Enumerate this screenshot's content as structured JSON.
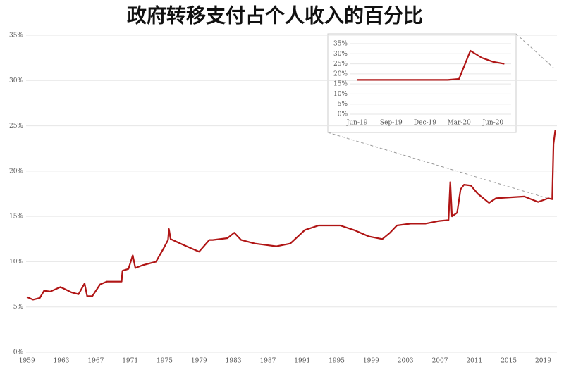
{
  "chart_data": [
    {
      "type": "line",
      "title": "政府转移支付占个人收入的百分比",
      "x": [
        1959,
        1959.7,
        1960.5,
        1961,
        1961.7,
        1962.9,
        1964.2,
        1965,
        1965.7,
        1966,
        1966.6,
        1967.5,
        1968.3,
        1970,
        1970.1,
        1970.8,
        1971.3,
        1971.6,
        1972.4,
        1974,
        1974.9,
        1975.4,
        1975.5,
        1975.7,
        1977.3,
        1979,
        1980.2,
        1980.6,
        1982.3,
        1983.1,
        1983.9,
        1985.5,
        1988,
        1989.6,
        1991.3,
        1992.9,
        1995.4,
        1997,
        1998.7,
        2000.3,
        2001.2,
        2002,
        2003.6,
        2005.3,
        2006.9,
        2008,
        2008.2,
        2008.4,
        2009,
        2009.4,
        2009.8,
        2010.6,
        2011.4,
        2012.7,
        2013.5,
        2016.8,
        2018.4,
        2019.6,
        2020.05,
        2020.2,
        2020.4
      ],
      "series": [
        {
          "color": "#b01515",
          "values": [
            6.1,
            5.8,
            6.0,
            6.8,
            6.7,
            7.2,
            6.6,
            6.4,
            7.6,
            6.2,
            6.2,
            7.5,
            7.8,
            7.8,
            9.0,
            9.2,
            10.7,
            9.3,
            9.6,
            10.0,
            11.5,
            12.4,
            13.6,
            12.5,
            11.8,
            11.1,
            12.4,
            12.4,
            12.6,
            13.2,
            12.4,
            12.0,
            11.7,
            12.0,
            13.5,
            14.0,
            14.0,
            13.5,
            12.8,
            12.5,
            13.2,
            14.0,
            14.2,
            14.2,
            14.5,
            14.6,
            18.8,
            15.0,
            15.4,
            18.0,
            18.5,
            18.4,
            17.5,
            16.5,
            17.0,
            17.2,
            16.6,
            17.0,
            16.9,
            23.0,
            24.5
          ]
        }
      ],
      "xlim": [
        1958.9,
        2020.6
      ],
      "xticks": [
        1959,
        1963,
        1967,
        1971,
        1975,
        1979,
        1983,
        1987,
        1991,
        1995,
        1999,
        2003,
        2007,
        2011,
        2015,
        2019
      ],
      "ylim": [
        0,
        35
      ],
      "yticks": [
        {
          "value": 0,
          "label": "0%"
        },
        {
          "value": 5,
          "label": "5%"
        },
        {
          "value": 10,
          "label": "10%"
        },
        {
          "value": 15,
          "label": "15%"
        },
        {
          "value": 20,
          "label": "20%"
        },
        {
          "value": 25,
          "label": "25%"
        },
        {
          "value": 30,
          "label": "30%"
        },
        {
          "value": 35,
          "label": "35%"
        }
      ],
      "grid": true
    },
    {
      "type": "line",
      "categories": [
        "Jun-19",
        null,
        null,
        "Sep-19",
        null,
        null,
        "Dec-19",
        null,
        null,
        "Mar-20",
        null,
        null,
        "Jun-20",
        null
      ],
      "series": [
        {
          "color": "#b01515",
          "values": [
            17,
            17,
            17,
            17,
            17,
            17,
            17,
            17,
            17,
            17.5,
            31.5,
            28,
            26,
            25
          ]
        }
      ],
      "ylim": [
        0,
        35
      ],
      "yticks": [
        {
          "value": 0,
          "label": "0%"
        },
        {
          "value": 5,
          "label": "5%"
        },
        {
          "value": 10,
          "label": "10%"
        },
        {
          "value": 15,
          "label": "15%"
        },
        {
          "value": 20,
          "label": "20%"
        },
        {
          "value": 25,
          "label": "25%"
        },
        {
          "value": 30,
          "label": "30%"
        },
        {
          "value": 35,
          "label": "35%"
        }
      ],
      "grid": true
    }
  ]
}
